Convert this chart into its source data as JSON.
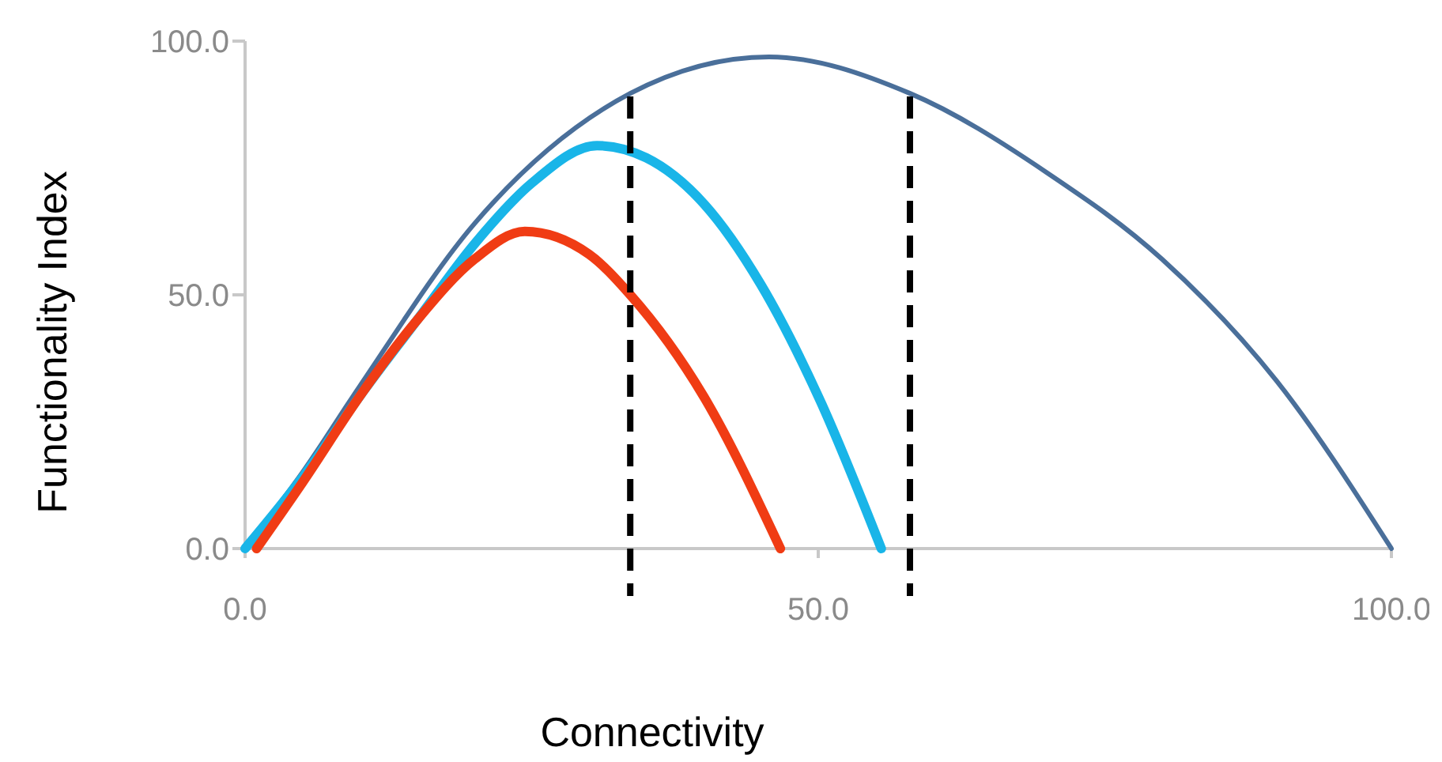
{
  "chart_data": {
    "type": "line",
    "xlabel": "Connectivity",
    "ylabel": "Functionality Index",
    "xlim": [
      0,
      100
    ],
    "ylim": [
      0,
      100
    ],
    "xticks": [
      {
        "value": 0,
        "label": "0.0"
      },
      {
        "value": 50,
        "label": "50.0"
      },
      {
        "value": 100,
        "label": "100.0"
      }
    ],
    "yticks": [
      {
        "value": 0,
        "label": "0.0"
      },
      {
        "value": 50,
        "label": "50.0"
      },
      {
        "value": 100,
        "label": "100.0"
      }
    ],
    "marker": "none",
    "line_style": "solid",
    "series": [
      {
        "color": "#4a6f9a",
        "x": [
          0,
          5,
          10,
          20,
          33.6,
          45.7,
          58,
          70,
          80,
          90,
          100
        ],
        "values": [
          0,
          15,
          32,
          64,
          89.7,
          96.9,
          89.7,
          74,
          57,
          33,
          0
        ]
      },
      {
        "color": "#19b5e8",
        "x": [
          0,
          5,
          10,
          15,
          20,
          25,
          30.7,
          35,
          40,
          45,
          50,
          55.5
        ],
        "values": [
          0,
          14,
          30,
          45,
          60,
          72,
          79.4,
          77,
          68,
          52,
          30,
          0
        ]
      },
      {
        "color": "#f03c14",
        "x": [
          1,
          5,
          10,
          15,
          20,
          24.4,
          30,
          33.6,
          40,
          46.7
        ],
        "values": [
          0,
          13,
          30,
          45,
          57,
          62.5,
          58,
          50,
          30,
          0
        ]
      }
    ],
    "ref_lines": [
      {
        "axis": "x",
        "value": 33.6,
        "color": "#000000",
        "line_style": "dashed"
      },
      {
        "axis": "x",
        "value": 58,
        "color": "#000000",
        "line_style": "dashed"
      }
    ]
  }
}
